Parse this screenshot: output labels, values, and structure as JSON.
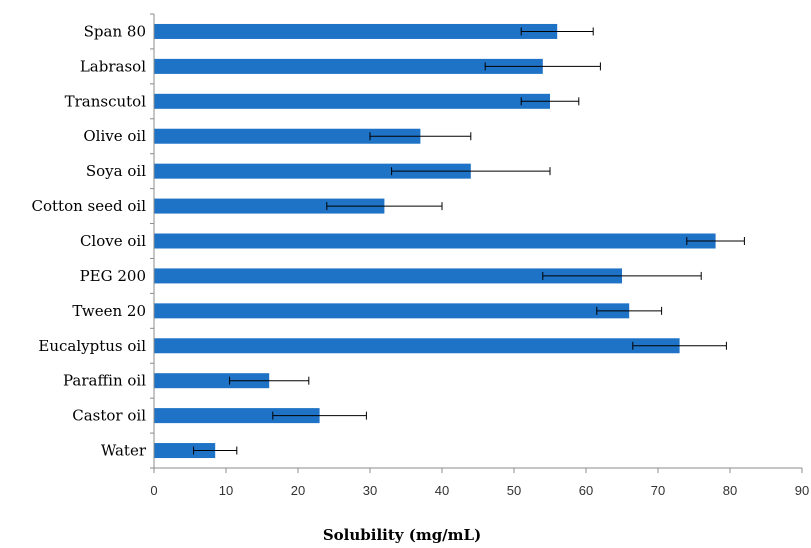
{
  "chart_data": {
    "type": "bar",
    "orientation": "horizontal",
    "categories": [
      "Span 80",
      "Labrasol",
      "Transcutol",
      "Olive oil",
      "Soya oil",
      "Cotton seed oil",
      "Clove oil",
      "PEG 200",
      "Tween 20",
      "Eucalyptus oil",
      "Paraffin oil",
      "Castor oil",
      "Water"
    ],
    "values": [
      56,
      54,
      55,
      37,
      44,
      32,
      78,
      65,
      66,
      73,
      16,
      23,
      8.5
    ],
    "errors": [
      5,
      8,
      4,
      7,
      11,
      8,
      4,
      11,
      4.5,
      6.5,
      5.5,
      6.5,
      3
    ],
    "xlabel": "Solubility (mg/mL)",
    "xlim": [
      0,
      90
    ],
    "xticks": [
      "0",
      "10",
      "20",
      "30",
      "40",
      "50",
      "60",
      "70",
      "80",
      "90"
    ],
    "grid": false,
    "bar_color": "#1f73c6",
    "error_bar_color": "#000000",
    "axis_color": "#8c8c8c"
  }
}
